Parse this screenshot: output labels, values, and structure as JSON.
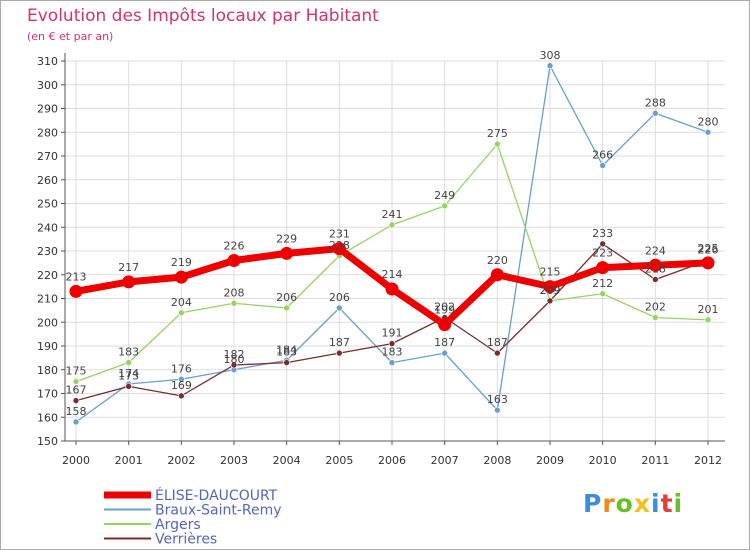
{
  "header": {
    "title": "Evolution des Impôts locaux par Habitant",
    "subtitle": "(en € et par an)"
  },
  "logo": {
    "letters": [
      "P",
      "r",
      "o",
      "x",
      "i",
      "t",
      "i"
    ]
  },
  "colors": {
    "grid": "#dddddd",
    "axis": "#555555",
    "logo": [
      "#3b8fd6",
      "#f08a1c",
      "#69c025",
      "#f0c21c",
      "#3b8fd6",
      "#e0413a",
      "#69c025"
    ]
  },
  "chart_data": {
    "type": "line",
    "title": "Evolution des Impôts locaux par Habitant",
    "subtitle": "(en € et par an)",
    "xlabel": "",
    "ylabel": "",
    "x": [
      "2000",
      "2001",
      "2002",
      "2003",
      "2004",
      "2005",
      "2006",
      "2007",
      "2008",
      "2009",
      "2010",
      "2011",
      "2012"
    ],
    "ylim": [
      150,
      310
    ],
    "yticks": [
      150,
      160,
      170,
      180,
      190,
      200,
      210,
      220,
      230,
      240,
      250,
      260,
      270,
      280,
      290,
      300,
      310
    ],
    "grid": true,
    "legend_position": "bottom-left",
    "series": [
      {
        "name": "ÉLISE-DAUCOURT",
        "color": "#ee0000",
        "width": 7,
        "marker": 6.5,
        "values": [
          213,
          217,
          219,
          226,
          229,
          231,
          214,
          199,
          220,
          215,
          223,
          224,
          225
        ],
        "labels": [
          "213",
          "217",
          "219",
          "226",
          "229",
          "231",
          "214",
          "199",
          "220",
          "215",
          "223",
          "224",
          "225"
        ]
      },
      {
        "name": "Braux-Saint-Remy",
        "color": "#6a9fd0",
        "width": 1.3,
        "marker": 3,
        "values": [
          158,
          174,
          176,
          180,
          184,
          206,
          183,
          187,
          163,
          308,
          266,
          288,
          280
        ],
        "labels": [
          "158",
          "174",
          "176",
          "180",
          "184",
          "206",
          "183",
          "187",
          "163",
          "308",
          "266",
          "288",
          "280"
        ]
      },
      {
        "name": "Argers",
        "color": "#96d462",
        "width": 1.3,
        "marker": 3,
        "values": [
          175,
          183,
          204,
          208,
          206,
          228,
          241,
          249,
          275,
          209,
          212,
          202,
          201
        ],
        "labels": [
          "175",
          "183",
          "204",
          "208",
          "206",
          "228",
          "241",
          "249",
          "275",
          "209",
          "212",
          "202",
          "201"
        ]
      },
      {
        "name": "Verrières",
        "color": "#7b2d2d",
        "width": 1.3,
        "marker": 3,
        "values": [
          167,
          173,
          169,
          182,
          183,
          187,
          191,
          202,
          187,
          209,
          233,
          218,
          226
        ],
        "labels": [
          "167",
          "173",
          "169",
          "182",
          "183",
          "187",
          "191",
          "202",
          "187",
          "209",
          "233",
          "218",
          "226"
        ]
      }
    ]
  },
  "legend": {
    "items": [
      {
        "name": "ÉLISE-DAUCOURT",
        "color": "#ee0000",
        "thick": true
      },
      {
        "name": "Braux-Saint-Remy",
        "color": "#6a9fd0",
        "thick": false
      },
      {
        "name": "Argers",
        "color": "#96d462",
        "thick": false
      },
      {
        "name": "Verrières",
        "color": "#7b2d2d",
        "thick": false
      }
    ]
  }
}
